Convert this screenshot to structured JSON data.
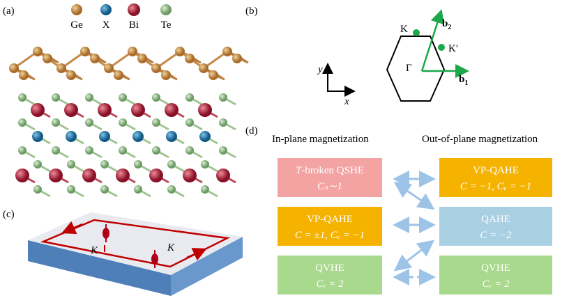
{
  "panel_labels": [
    "(a)",
    "(b)",
    "(c)",
    "(d)"
  ],
  "atoms": [
    "Ge",
    "X",
    "Bi",
    "Te"
  ],
  "bz": {
    "y_axis": "y",
    "x_axis": "x",
    "K": "K",
    "K_prime": "K′",
    "gamma": "Γ",
    "b1": [
      "b",
      "1"
    ],
    "b2": [
      "b",
      "2"
    ]
  },
  "edge_labels": [
    "K",
    "K"
  ],
  "phases": {
    "headers": [
      "In-plane magnetization",
      "Out-of-plane magnetization"
    ],
    "left": [
      {
        "title": [
          "T",
          "-broken QSHE"
        ],
        "formula": "Cₛ∼1"
      },
      {
        "title": [
          "",
          "VP-QAHE"
        ],
        "formula": "C = ±1, Cᵥ = −1"
      },
      {
        "title": [
          "",
          "QVHE"
        ],
        "formula": "Cᵥ = 2"
      }
    ],
    "right": [
      {
        "title": [
          "",
          "VP-QAHE"
        ],
        "formula": "C = −1, Cᵥ = −1"
      },
      {
        "title": [
          "",
          "QAHE"
        ],
        "formula": "C = −2"
      },
      {
        "title": [
          "",
          "QVHE"
        ],
        "formula": "Cᵥ = 2"
      }
    ]
  }
}
